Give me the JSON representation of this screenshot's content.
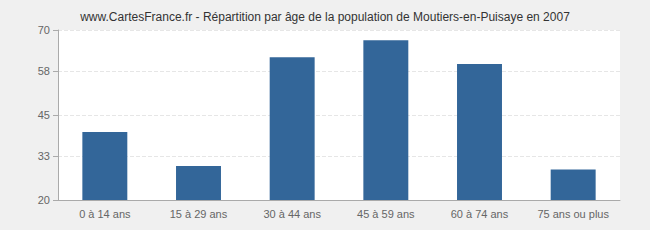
{
  "chart_data": {
    "type": "bar",
    "title": "www.CartesFrance.fr - Répartition par âge de la population de Moutiers-en-Puisaye en 2007",
    "categories": [
      "0 à 14 ans",
      "15 à 29 ans",
      "30 à 44 ans",
      "45 à 59 ans",
      "60 à 74 ans",
      "75 ans ou plus"
    ],
    "values": [
      40,
      30,
      62,
      67,
      60,
      29
    ],
    "color": "#336699",
    "ylim": [
      20,
      70
    ],
    "yticks": [
      20,
      33,
      45,
      58,
      70
    ],
    "grid": true
  }
}
